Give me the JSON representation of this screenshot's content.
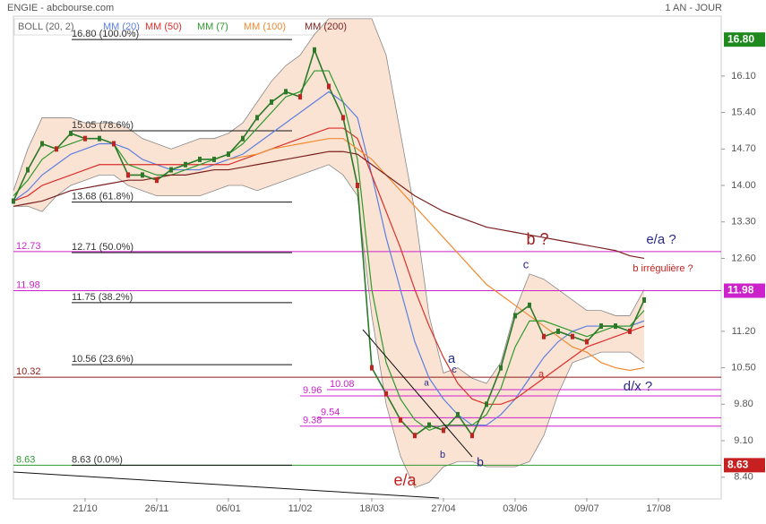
{
  "chart_data": {
    "type": "line",
    "title": "ENGIE - abcbourse.com",
    "subtitle": "1 AN - JOUR",
    "categories": [
      null,
      null,
      null,
      null,
      null,
      "21/10",
      null,
      null,
      null,
      null,
      "26/11",
      null,
      null,
      null,
      null,
      "06/01",
      null,
      null,
      null,
      null,
      "11/02",
      null,
      null,
      null,
      null,
      "18/03",
      null,
      null,
      null,
      null,
      "27/04",
      null,
      null,
      null,
      null,
      "03/06",
      null,
      null,
      null,
      null,
      "09/07",
      null,
      null,
      null,
      null,
      "17/08"
    ],
    "values": [
      13.7,
      14.3,
      14.8,
      14.7,
      15.0,
      14.9,
      14.9,
      14.8,
      14.2,
      14.2,
      14.1,
      14.3,
      14.4,
      14.5,
      14.5,
      14.6,
      14.9,
      15.3,
      15.6,
      15.8,
      15.7,
      16.6,
      15.9,
      15.3,
      14.0,
      10.5,
      10.0,
      9.5,
      9.2,
      9.4,
      9.3,
      9.6,
      9.2,
      9.8,
      10.5,
      11.5,
      11.7,
      11.1,
      11.2,
      11.1,
      11.0,
      11.3,
      11.3,
      11.2,
      11.8,
      null
    ],
    "color": "#2a7a2a",
    "bands": {
      "name": "BOLL (20, 2)",
      "color": "#888888",
      "fill": "#fbe3d3",
      "upper": [
        13.9,
        14.7,
        15.3,
        15.3,
        15.3,
        15.2,
        15.2,
        15.2,
        15.1,
        14.9,
        14.8,
        14.7,
        14.8,
        14.9,
        14.9,
        15.0,
        15.2,
        15.6,
        16.0,
        16.3,
        16.5,
        16.9,
        17.2,
        17.2,
        17.2,
        17.2,
        16.5,
        15.0,
        13.5,
        11.5,
        10.4,
        10.5,
        10.3,
        10.2,
        10.6,
        11.6,
        12.3,
        12.2,
        12.0,
        11.8,
        11.6,
        11.6,
        11.5,
        11.5,
        12.0,
        null
      ],
      "lower": [
        13.6,
        13.6,
        13.5,
        13.8,
        14.0,
        14.1,
        14.2,
        14.2,
        14.0,
        13.9,
        13.8,
        13.8,
        13.8,
        13.8,
        13.9,
        14.0,
        14.0,
        13.9,
        14.0,
        14.1,
        14.2,
        14.3,
        14.4,
        14.2,
        13.8,
        11.5,
        9.8,
        8.8,
        8.2,
        8.3,
        8.6,
        8.7,
        8.7,
        8.6,
        8.6,
        8.6,
        8.7,
        9.2,
        10.0,
        10.6,
        10.7,
        10.8,
        10.8,
        10.8,
        10.6,
        null
      ]
    },
    "series": [
      {
        "name": "MM (20)",
        "color": "#5b7fe0",
        "values": [
          13.7,
          13.9,
          14.2,
          14.4,
          14.6,
          14.7,
          14.8,
          14.8,
          14.7,
          14.5,
          14.4,
          14.3,
          14.3,
          14.3,
          14.4,
          14.5,
          14.6,
          14.8,
          15.0,
          15.2,
          15.4,
          15.6,
          15.8,
          15.6,
          15.3,
          14.2,
          13.0,
          12.0,
          11.0,
          10.3,
          9.9,
          9.6,
          9.4,
          9.4,
          9.6,
          9.9,
          10.3,
          10.7,
          11.0,
          11.2,
          11.3,
          11.3,
          11.3,
          11.3,
          11.4,
          null
        ]
      },
      {
        "name": "MM (50)",
        "color": "#d9302c",
        "values": [
          13.7,
          13.8,
          14.0,
          14.1,
          14.2,
          14.3,
          14.4,
          14.4,
          14.4,
          14.4,
          14.4,
          14.4,
          14.4,
          14.4,
          14.4,
          14.4,
          14.5,
          14.6,
          14.7,
          14.8,
          14.9,
          15.0,
          15.1,
          15.1,
          14.9,
          14.2,
          13.5,
          12.8,
          12.0,
          11.3,
          10.7,
          10.2,
          9.9,
          9.8,
          9.8,
          9.9,
          10.1,
          10.3,
          10.5,
          10.7,
          10.9,
          11.0,
          11.1,
          11.2,
          11.3,
          null
        ]
      },
      {
        "name": "MM (7)",
        "color": "#2e9a2e",
        "values": [
          13.8,
          14.1,
          14.5,
          14.7,
          14.8,
          14.9,
          14.9,
          14.8,
          14.4,
          14.3,
          14.2,
          14.2,
          14.3,
          14.4,
          14.5,
          14.6,
          14.8,
          15.1,
          15.4,
          15.7,
          15.8,
          16.2,
          16.2,
          15.6,
          14.5,
          12.0,
          10.6,
          9.9,
          9.5,
          9.3,
          9.4,
          9.4,
          9.4,
          9.6,
          10.1,
          10.9,
          11.4,
          11.4,
          11.3,
          11.2,
          11.1,
          11.2,
          11.3,
          11.3,
          11.6,
          null
        ]
      },
      {
        "name": "MM (100)",
        "color": "#f08a30",
        "values": [
          null,
          null,
          null,
          null,
          null,
          null,
          null,
          null,
          null,
          null,
          null,
          null,
          null,
          null,
          null,
          14.5,
          14.55,
          14.6,
          14.7,
          14.75,
          14.8,
          14.85,
          14.9,
          14.9,
          14.7,
          14.5,
          14.2,
          13.9,
          13.6,
          13.3,
          13.0,
          12.7,
          12.4,
          12.1,
          11.9,
          11.7,
          11.5,
          11.3,
          11.1,
          10.9,
          10.8,
          10.6,
          10.5,
          10.45,
          10.5,
          null
        ]
      },
      {
        "name": "MM (200)",
        "color": "#7a1f1f",
        "values": [
          13.6,
          13.65,
          13.7,
          13.8,
          13.9,
          13.95,
          14.0,
          14.05,
          14.1,
          14.1,
          14.15,
          14.2,
          14.2,
          14.25,
          14.3,
          14.3,
          14.35,
          14.4,
          14.45,
          14.5,
          14.55,
          14.6,
          14.65,
          14.65,
          14.6,
          14.4,
          14.2,
          14.0,
          13.8,
          13.65,
          13.5,
          13.4,
          13.3,
          13.2,
          13.15,
          13.1,
          13.05,
          13.0,
          12.95,
          12.9,
          12.85,
          12.8,
          12.75,
          12.65,
          12.6,
          null
        ]
      }
    ],
    "ylim": [
      8.0,
      17.25
    ],
    "yticks": [
      {
        "value": 16.1,
        "label": "16.10"
      },
      {
        "value": 15.4,
        "label": "15.40"
      },
      {
        "value": 14.7,
        "label": "14.70"
      },
      {
        "value": 14.0,
        "label": "14.00"
      },
      {
        "value": 13.3,
        "label": "13.30"
      },
      {
        "value": 12.6,
        "label": "12.60"
      },
      {
        "value": 11.2,
        "label": "11.20"
      },
      {
        "value": 10.5,
        "label": "10.50"
      },
      {
        "value": 9.8,
        "label": "9.80"
      },
      {
        "value": 9.1,
        "label": "9.10"
      },
      {
        "value": 8.4,
        "label": "8.40"
      }
    ],
    "fibonacci": [
      {
        "value": 16.8,
        "label": "16.80  (100.0%)"
      },
      {
        "value": 15.05,
        "label": "15.05  (78.6%)"
      },
      {
        "value": 13.68,
        "label": "13.68  (61.8%)"
      },
      {
        "value": 12.71,
        "label": "12.71  (50.0%)"
      },
      {
        "value": 11.75,
        "label": "11.75  (38.2%)"
      },
      {
        "value": 10.56,
        "label": "10.56  (23.6%)"
      },
      {
        "value": 8.63,
        "label": "8.63  (0.0%)"
      }
    ],
    "levels": [
      {
        "value": 12.73,
        "color": "#cc22cc"
      },
      {
        "value": 11.98,
        "color": "#cc22cc"
      },
      {
        "value": 10.32,
        "color": "#8b1a1a"
      },
      {
        "value": 10.08,
        "color": "#cc22cc"
      },
      {
        "value": 9.96,
        "color": "#cc22cc"
      },
      {
        "value": 9.54,
        "color": "#cc22cc"
      },
      {
        "value": 9.38,
        "color": "#cc22cc"
      },
      {
        "value": 8.63,
        "color": "#2e9a2e"
      }
    ],
    "price_tags": [
      {
        "value": 16.8,
        "label": "16.80",
        "color": "#1e8a1e"
      },
      {
        "value": 11.98,
        "label": "11.98",
        "color": "#cc22cc"
      },
      {
        "value": 8.63,
        "label": "8.63",
        "color": "#c62020"
      }
    ],
    "annotations": [
      {
        "text": "b ?",
        "color": "#9a1c1c"
      },
      {
        "text": "e/a ?",
        "color": "#2a2a8a"
      },
      {
        "text": "c",
        "color": "#2a2a8a"
      },
      {
        "text": "b irrégulière ?",
        "color": "#c62020"
      },
      {
        "text": "a",
        "color": "#2a2a8a"
      },
      {
        "text": "c",
        "color": "#2a2a8a"
      },
      {
        "text": "a",
        "color": "#2a2a8a"
      },
      {
        "text": "d/x ?",
        "color": "#2a2a8a"
      },
      {
        "text": "b",
        "color": "#2a2a8a"
      },
      {
        "text": "b",
        "color": "#2a2a8a"
      },
      {
        "text": "a",
        "color": "#c62020"
      },
      {
        "text": "e/a",
        "color": "#c62020"
      }
    ]
  }
}
